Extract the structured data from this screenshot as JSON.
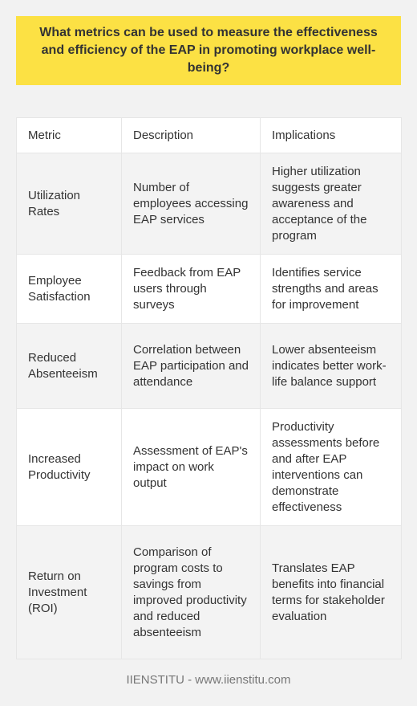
{
  "question": "What metrics can be used to measure the effectiveness and efficiency of the EAP in promoting workplace well-being?",
  "table": {
    "headers": [
      "Metric",
      "Description",
      "Implications"
    ],
    "rows": [
      {
        "metric": "Utilization Rates",
        "description": "Number of employees accessing EAP services",
        "implications": "Higher utilization suggests greater awareness and acceptance of the program"
      },
      {
        "metric": "Employee Satisfaction",
        "description": "Feedback from EAP users through surveys",
        "implications": "Identifies service strengths and areas for improvement"
      },
      {
        "metric": "Reduced Absenteeism",
        "description": "Correlation between EAP participation and attendance",
        "implications": "Lower absenteeism indicates better work-life balance support"
      },
      {
        "metric": "Increased Productivity",
        "description": "Assessment of EAP's impact on work output",
        "implications": "Productivity assessments before and after EAP interventions can demonstrate effectiveness"
      },
      {
        "metric": "Return on Investment (ROI)",
        "description": "Comparison of program costs to savings from improved productivity and reduced absenteeism",
        "implications": "Translates EAP benefits into financial terms for stakeholder evaluation"
      }
    ]
  },
  "footer": "IIENSTITU - www.iienstitu.com"
}
